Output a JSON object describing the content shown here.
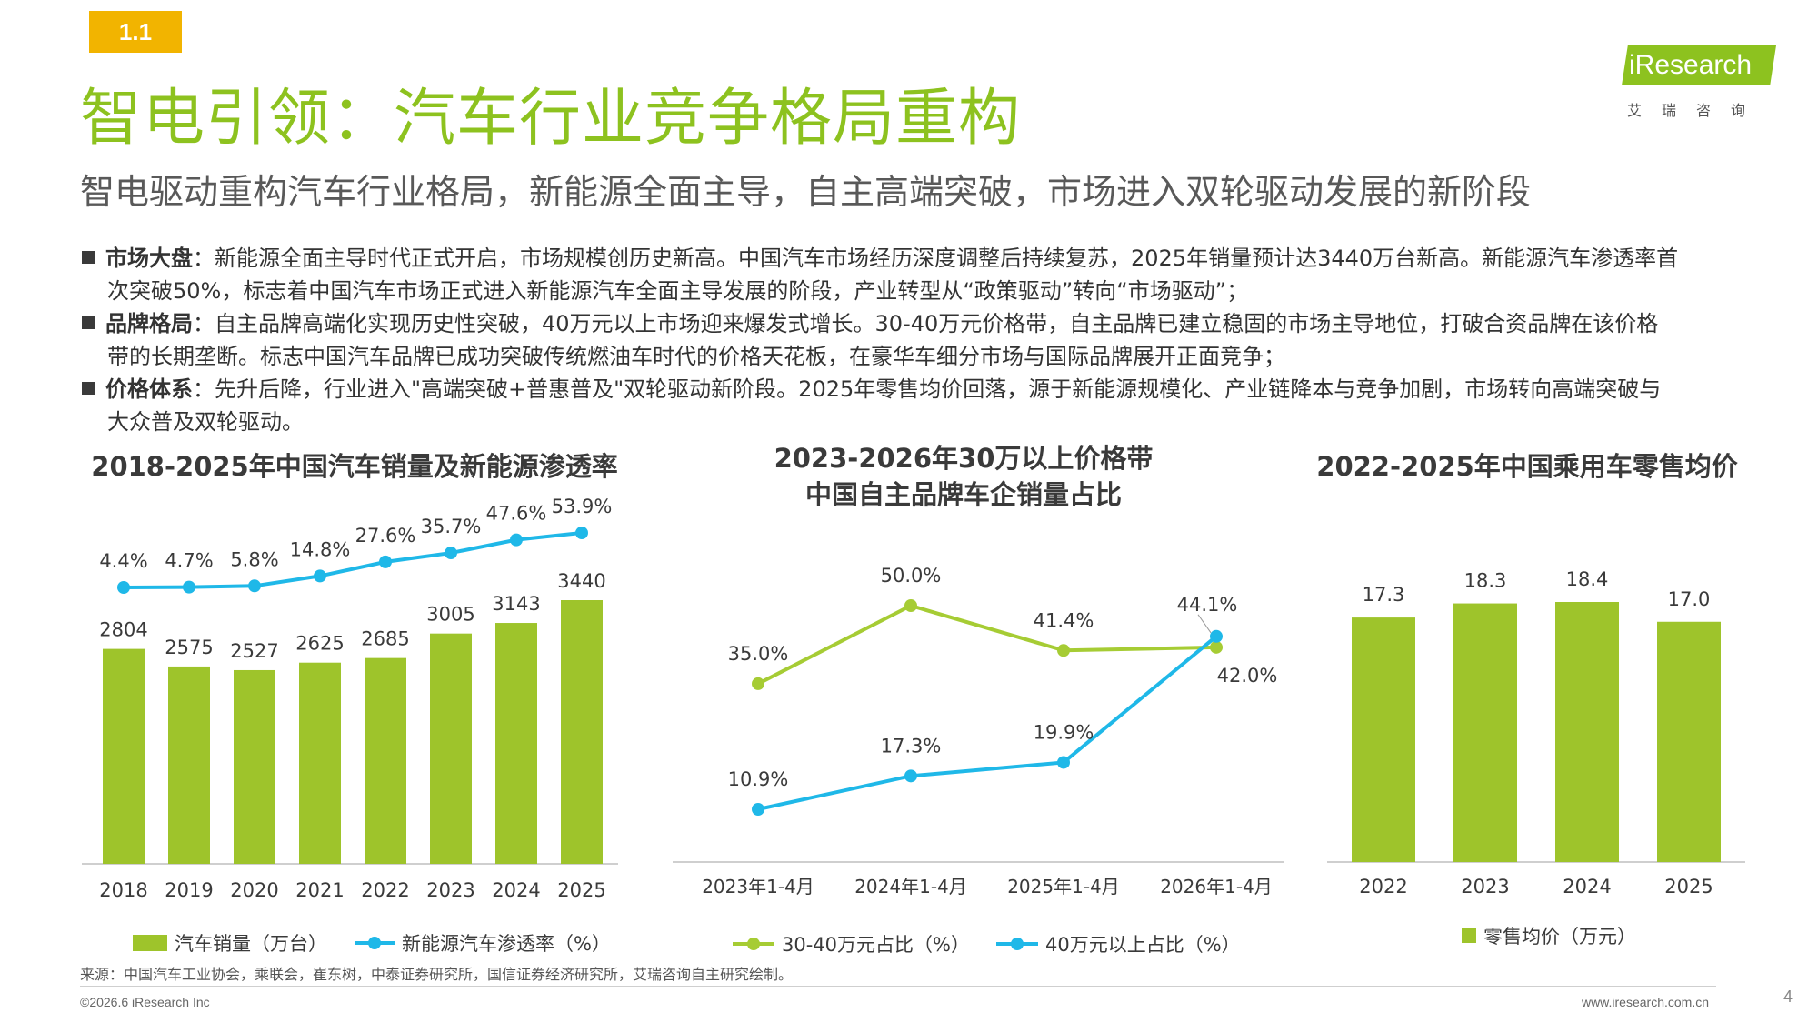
{
  "header": {
    "badge": "1.1",
    "title": "智电引领：汽车行业竞争格局重构",
    "subtitle": "智电驱动重构汽车行业格局，新能源全面主导，自主高端突破，市场进入双轮驱动发展的新阶段"
  },
  "logo": {
    "word": "iResearch",
    "sub": "艾瑞咨询",
    "color": "#8dc21f"
  },
  "bullets": [
    {
      "label": "市场大盘",
      "line1": "：新能源全面主导时代正式开启，市场规模创历史新高。中国汽车市场经历深度调整后持续复苏，2025年销量预计达3440万台新高。新能源汽车渗透率首",
      "line2": "次突破50%，标志着中国汽车市场正式进入新能源汽车全面主导发展的阶段，产业转型从“政策驱动”转向“市场驱动”；"
    },
    {
      "label": "品牌格局",
      "line1": "：自主品牌高端化实现历史性突破，40万元以上市场迎来爆发式增长。30-40万元价格带，自主品牌已建立稳固的市场主导地位，打破合资品牌在该价格",
      "line2": "带的长期垄断。标志中国汽车品牌已成功突破传统燃油车时代的价格天花板，在豪华车细分市场与国际品牌展开正面竞争；"
    },
    {
      "label": "价格体系",
      "line1": "：先升后降，行业进入\"高端突破+普惠普及\"双轮驱动新阶段。2025年零售均价回落，源于新能源规模化、产业链降本与竞争加剧，市场转向高端突破与",
      "line2": "大众普及双轮驱动。"
    }
  ],
  "chart_data": [
    {
      "type": "bar",
      "title": "2018-2025年中国汽车销量及新能源渗透率",
      "categories": [
        "2018",
        "2019",
        "2020",
        "2021",
        "2022",
        "2023",
        "2024",
        "2025"
      ],
      "series": [
        {
          "name": "汽车销量（万台）",
          "type": "bar",
          "values": [
            2804,
            2575,
            2527,
            2625,
            2685,
            3005,
            3143,
            3440
          ],
          "labels": [
            "2804",
            "2575",
            "2527",
            "2625",
            "2685",
            "3005",
            "3143",
            "3440"
          ],
          "color": "#9ec42b"
        },
        {
          "name": "新能源汽车渗透率（%）",
          "type": "line",
          "values": [
            4.4,
            4.7,
            5.8,
            14.8,
            27.6,
            35.7,
            47.6,
            53.9
          ],
          "labels": [
            "4.4%",
            "4.7%",
            "5.8%",
            "14.8%",
            "27.6%",
            "35.7%",
            "47.6%",
            "53.9%"
          ],
          "color": "#1fb8e8"
        }
      ],
      "legend_position": "bottom",
      "grid": false
    },
    {
      "type": "line",
      "title_line1": "2023-2026年30万以上价格带",
      "title_line2": "中国自主品牌车企销量占比",
      "categories": [
        "2023年1-4月",
        "2024年1-4月",
        "2025年1-4月",
        "2026年1-4月"
      ],
      "series": [
        {
          "name": "30-40万元占比（%）",
          "values": [
            35.0,
            50.0,
            41.4,
            42.0
          ],
          "labels": [
            "35.0%",
            "50.0%",
            "41.4%",
            "42.0%"
          ],
          "color": "#a6cc34"
        },
        {
          "name": "40万元以上占比（%）",
          "values": [
            10.9,
            17.3,
            19.9,
            44.1
          ],
          "labels": [
            "10.9%",
            "17.3%",
            "19.9%",
            "44.1%"
          ],
          "color": "#1fb8e8"
        }
      ],
      "legend_position": "bottom",
      "grid": false
    },
    {
      "type": "bar",
      "title": "2022-2025年中国乘用车零售均价",
      "categories": [
        "2022",
        "2023",
        "2024",
        "2025"
      ],
      "series": [
        {
          "name": "零售均价（万元）",
          "values": [
            17.3,
            18.3,
            18.4,
            17.0
          ],
          "labels": [
            "17.3",
            "18.3",
            "18.4",
            "17.0"
          ],
          "color": "#9ec42b"
        }
      ],
      "legend_position": "bottom",
      "grid": false
    }
  ],
  "footer": {
    "source": "来源：中国汽车工业协会，乘联会，崔东树，中泰证券研究所，国信证券经济研究所，艾瑞咨询自主研究绘制。",
    "copyright": "©2026.6 iResearch Inc",
    "website": "www.iresearch.com.cn",
    "page": "4"
  }
}
